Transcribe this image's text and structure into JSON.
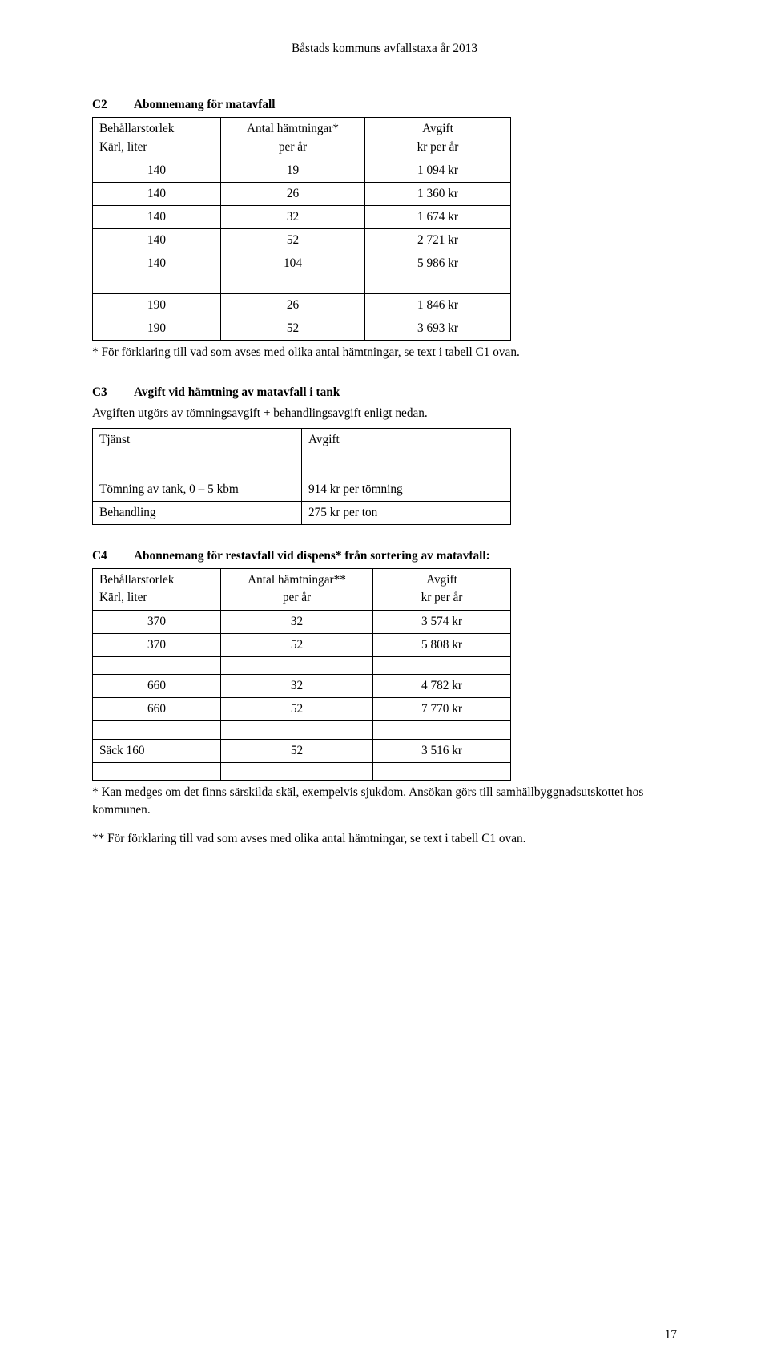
{
  "doc": {
    "header": "Båstads kommuns avfallstaxa år 2013",
    "page_number": "17"
  },
  "c2": {
    "code": "C2",
    "title": "Abonnemang för matavfall",
    "headers": {
      "col1_top": "Behållarstorlek",
      "col1_bot": "Kärl, liter",
      "col2_top": "Antal hämtningar*",
      "col2_bot": "per år",
      "col3_top": "Avgift",
      "col3_bot": "kr per år"
    },
    "rows1": [
      [
        "140",
        "19",
        "1 094 kr"
      ],
      [
        "140",
        "26",
        "1 360 kr"
      ],
      [
        "140",
        "32",
        "1 674 kr"
      ],
      [
        "140",
        "52",
        "2 721 kr"
      ],
      [
        "140",
        "104",
        "5 986 kr"
      ]
    ],
    "rows2": [
      [
        "190",
        "26",
        "1 846 kr"
      ],
      [
        "190",
        "52",
        "3 693 kr"
      ]
    ],
    "footnote": "* För förklaring till vad som avses med olika antal hämtningar, se text i tabell C1 ovan."
  },
  "c3": {
    "code": "C3",
    "title": "Avgift vid hämtning av matavfall i tank",
    "lead": "Avgiften utgörs av tömningsavgift + behandlingsavgift enligt nedan.",
    "headers": {
      "col1": "Tjänst",
      "col2": "Avgift"
    },
    "rows": [
      [
        "Tömning av tank, 0 – 5 kbm",
        "914 kr per tömning"
      ],
      [
        "Behandling",
        "275 kr per ton"
      ]
    ]
  },
  "c4": {
    "code": "C4",
    "title": "Abonnemang för restavfall vid dispens* från sortering av matavfall:",
    "headers": {
      "col1_top": "Behållarstorlek",
      "col1_bot": "Kärl, liter",
      "col2_top": "Antal hämtningar**",
      "col2_bot": "per år",
      "col3_top": "Avgift",
      "col3_bot": "kr per år"
    },
    "rows1": [
      [
        "370",
        "32",
        "3 574 kr"
      ],
      [
        "370",
        "52",
        "5 808 kr"
      ]
    ],
    "rows2": [
      [
        "660",
        "32",
        "4 782 kr"
      ],
      [
        "660",
        "52",
        "7 770 kr"
      ]
    ],
    "rows3": [
      [
        "Säck 160",
        "52",
        "3 516 kr"
      ]
    ],
    "footnote1": "* Kan medges om det finns särskilda skäl, exempelvis sjukdom. Ansökan görs till samhällbyggnadsutskottet hos kommunen.",
    "footnote2": "** För förklaring till vad som avses med olika antal hämtningar, se text i tabell C1 ovan."
  }
}
